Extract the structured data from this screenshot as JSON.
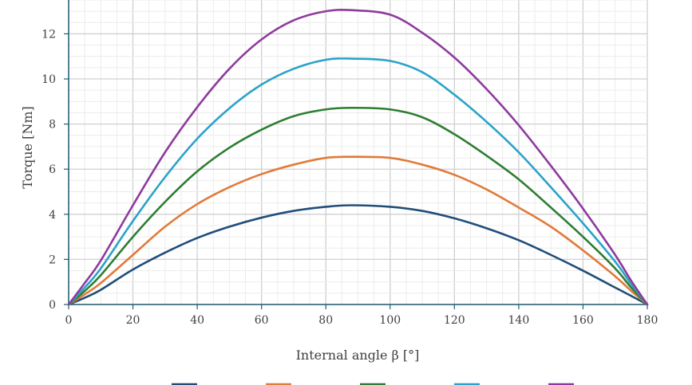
{
  "chart_data": {
    "type": "line",
    "xlabel": "Internal angle β [°]",
    "ylabel": "Torque [Nm]",
    "xlim": [
      0,
      180
    ],
    "ylim": [
      0,
      13.5
    ],
    "xticks": [
      0,
      20,
      40,
      60,
      80,
      100,
      120,
      140,
      160,
      180
    ],
    "yticks": [
      0,
      2,
      4,
      6,
      8,
      10,
      12
    ],
    "grid": "major and minor",
    "legend_position": "bottom",
    "x": [
      0,
      5,
      10,
      20,
      30,
      40,
      50,
      60,
      70,
      80,
      88,
      100,
      110,
      120,
      130,
      140,
      150,
      160,
      170,
      175,
      180
    ],
    "series": [
      {
        "color": "#1f4e79",
        "values": [
          0,
          0.3,
          0.65,
          1.55,
          2.3,
          2.95,
          3.45,
          3.85,
          4.15,
          4.33,
          4.4,
          4.33,
          4.15,
          3.82,
          3.38,
          2.85,
          2.2,
          1.5,
          0.75,
          0.38,
          0
        ]
      },
      {
        "color": "#e07b39",
        "values": [
          0,
          0.45,
          0.95,
          2.2,
          3.45,
          4.45,
          5.2,
          5.78,
          6.2,
          6.5,
          6.55,
          6.5,
          6.2,
          5.75,
          5.1,
          4.3,
          3.45,
          2.4,
          1.25,
          0.6,
          0
        ]
      },
      {
        "color": "#2e7d32",
        "values": [
          0,
          0.6,
          1.3,
          3.0,
          4.55,
          5.9,
          6.95,
          7.75,
          8.35,
          8.65,
          8.72,
          8.65,
          8.3,
          7.55,
          6.6,
          5.55,
          4.3,
          3.0,
          1.6,
          0.75,
          0
        ]
      },
      {
        "color": "#2aa3c9",
        "values": [
          0,
          0.75,
          1.6,
          3.7,
          5.65,
          7.35,
          8.7,
          9.75,
          10.45,
          10.85,
          10.9,
          10.8,
          10.3,
          9.3,
          8.1,
          6.75,
          5.2,
          3.6,
          1.9,
          0.9,
          0
        ]
      },
      {
        "color": "#8e3a9d",
        "values": [
          0,
          0.95,
          1.95,
          4.4,
          6.75,
          8.75,
          10.45,
          11.75,
          12.6,
          13.0,
          13.05,
          12.85,
          12.05,
          10.95,
          9.55,
          7.95,
          6.15,
          4.25,
          2.2,
          1.05,
          0
        ]
      }
    ]
  }
}
